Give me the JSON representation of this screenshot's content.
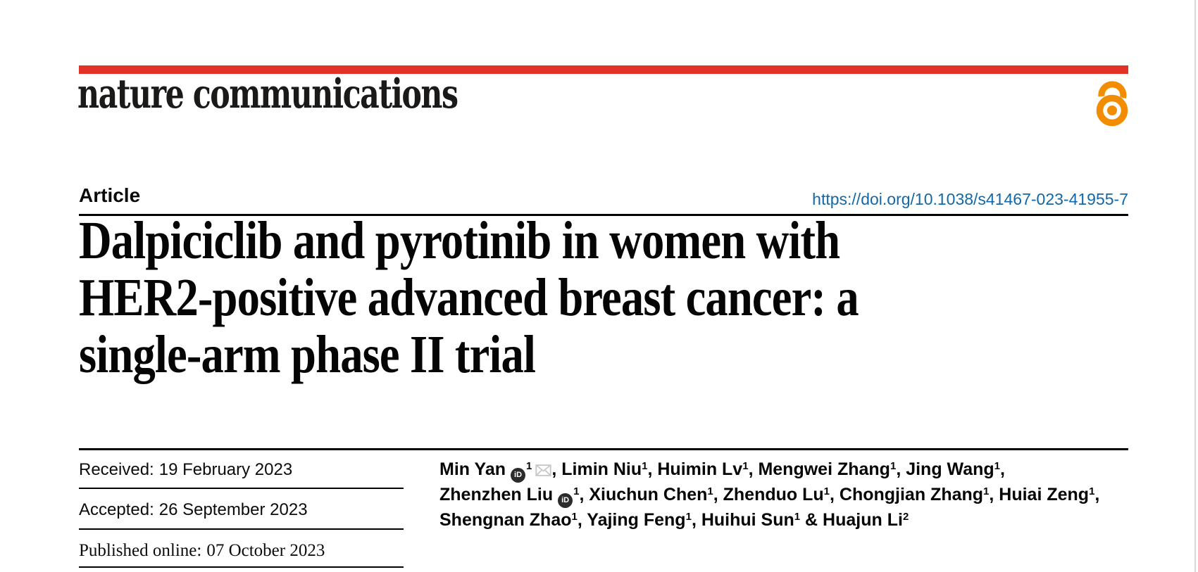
{
  "page": {
    "background": "#ffffff",
    "edge_color": "#d8d8d8"
  },
  "colors": {
    "accent_red": "#e23127",
    "open_access_orange": "#f28c00",
    "doi_blue": "#1268a8",
    "rule_black": "#010101",
    "envelope_gray": "#c7c7c7",
    "orcid_dark": "#2b2b2b"
  },
  "masthead": {
    "journal": "nature communications"
  },
  "icons": {
    "open_access": "open-padlock-icon",
    "orcid": "orcid-id-icon",
    "orcid_text": "iD",
    "email": "envelope-icon"
  },
  "article": {
    "kicker": "Article",
    "doi": "https://doi.org/10.1038/s41467-023-41955-7",
    "title_lines": [
      "Dalpiciclib and pyrotinib in women with",
      "HER2-positive advanced breast cancer: a",
      "single-arm phase II trial"
    ]
  },
  "history": {
    "rows": [
      {
        "label": "Received:",
        "value": "19 February 2023"
      },
      {
        "label": "Accepted:",
        "value": "26 September 2023"
      },
      {
        "label": "Published online:",
        "value": "07 October 2023"
      }
    ]
  },
  "authors": {
    "lines": [
      [
        {
          "t": "text",
          "v": "Min Yan"
        },
        {
          "t": "orcid"
        },
        {
          "t": "sup",
          "v": "1"
        },
        {
          "t": "mail"
        },
        {
          "t": "text",
          "v": ", Limin Niu"
        },
        {
          "t": "sup",
          "v": "1"
        },
        {
          "t": "text",
          "v": ", Huimin Lv"
        },
        {
          "t": "sup",
          "v": "1"
        },
        {
          "t": "text",
          "v": ", Mengwei Zhang"
        },
        {
          "t": "sup",
          "v": "1"
        },
        {
          "t": "text",
          "v": ", Jing Wang"
        },
        {
          "t": "sup",
          "v": "1"
        },
        {
          "t": "text",
          "v": ","
        }
      ],
      [
        {
          "t": "text",
          "v": "Zhenzhen Liu"
        },
        {
          "t": "orcid"
        },
        {
          "t": "sup",
          "v": "1"
        },
        {
          "t": "text",
          "v": ", Xiuchun Chen"
        },
        {
          "t": "sup",
          "v": "1"
        },
        {
          "t": "text",
          "v": ", Zhenduo Lu"
        },
        {
          "t": "sup",
          "v": "1"
        },
        {
          "t": "text",
          "v": ", Chongjian Zhang"
        },
        {
          "t": "sup",
          "v": "1"
        },
        {
          "t": "text",
          "v": ", Huiai Zeng"
        },
        {
          "t": "sup",
          "v": "1"
        },
        {
          "t": "text",
          "v": ","
        }
      ],
      [
        {
          "t": "text",
          "v": "Shengnan Zhao"
        },
        {
          "t": "sup",
          "v": "1"
        },
        {
          "t": "text",
          "v": ", Yajing Feng"
        },
        {
          "t": "sup",
          "v": "1"
        },
        {
          "t": "text",
          "v": ", Huihui Sun"
        },
        {
          "t": "sup",
          "v": "1"
        },
        {
          "t": "text",
          "v": " & Huajun Li"
        },
        {
          "t": "sup",
          "v": "2"
        }
      ]
    ]
  }
}
